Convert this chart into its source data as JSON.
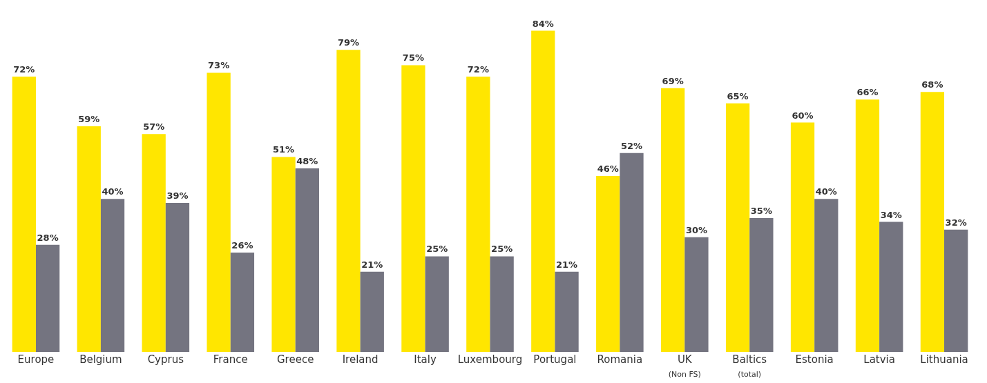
{
  "chart_data": {
    "type": "bar",
    "categories": [
      "Europe",
      "Belgium",
      "Cyprus",
      "France",
      "Greece",
      "Ireland",
      "Italy",
      "Luxembourg",
      "Portugal",
      "Romania",
      "UK\n(Non FS)",
      "Baltics\n(total)",
      "Estonia",
      "Latvia",
      "Lithuania"
    ],
    "series": [
      {
        "color": "#ffe600",
        "values": [
          72,
          59,
          57,
          73,
          51,
          79,
          75,
          72,
          84,
          46,
          69,
          65,
          60,
          66,
          68
        ],
        "value_labels": [
          "72%",
          "59%",
          "57%",
          "73%",
          "51%",
          "79%",
          "75%",
          "72%",
          "84%",
          "46%",
          "69%",
          "65%",
          "60%",
          "66%",
          "68%"
        ]
      },
      {
        "color": "#747480",
        "values": [
          28,
          40,
          39,
          26,
          48,
          21,
          25,
          25,
          21,
          52,
          30,
          35,
          40,
          34,
          32
        ],
        "value_labels": [
          "28%",
          "40%",
          "39%",
          "26%",
          "48%",
          "21%",
          "25%",
          "25%",
          "21%",
          "52%",
          "30%",
          "35%",
          "40%",
          "34%",
          "32%"
        ]
      }
    ],
    "tick_labels": "x"
  }
}
